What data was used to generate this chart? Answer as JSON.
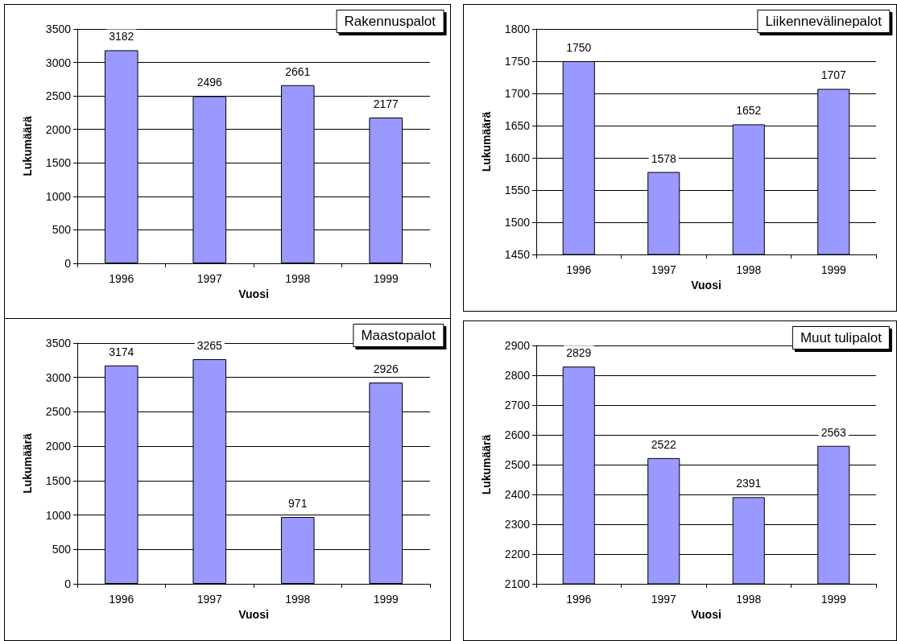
{
  "chart_data": [
    {
      "type": "bar",
      "title": "Rakennuspalot",
      "xlabel": "Vuosi",
      "ylabel": "Lukumäärä",
      "categories": [
        "1996",
        "1997",
        "1998",
        "1999"
      ],
      "values": [
        3182,
        2496,
        2661,
        2177
      ],
      "color": "#9999ff",
      "ylim": [
        0,
        3500
      ],
      "yticks": [
        0,
        500,
        1000,
        1500,
        2000,
        2500,
        3000,
        3500
      ],
      "grid": "y",
      "data_labels": true
    },
    {
      "type": "bar",
      "title": "Liikennevälinepalot",
      "xlabel": "Vuosi",
      "ylabel": "Lukumäärä",
      "categories": [
        "1996",
        "1997",
        "1998",
        "1999"
      ],
      "values": [
        1750,
        1578,
        1652,
        1707
      ],
      "color": "#9999ff",
      "ylim": [
        1450,
        1800
      ],
      "yticks": [
        1450,
        1500,
        1550,
        1600,
        1650,
        1700,
        1750,
        1800
      ],
      "grid": "y",
      "data_labels": true
    },
    {
      "type": "bar",
      "title": "Maastopalot",
      "xlabel": "Vuosi",
      "ylabel": "Lukumäärä",
      "categories": [
        "1996",
        "1997",
        "1998",
        "1999"
      ],
      "values": [
        3174,
        3265,
        971,
        2926
      ],
      "color": "#9999ff",
      "ylim": [
        0,
        3500
      ],
      "yticks": [
        0,
        500,
        1000,
        1500,
        2000,
        2500,
        3000,
        3500
      ],
      "grid": "y",
      "data_labels": true
    },
    {
      "type": "bar",
      "title": "Muut tulipalot",
      "xlabel": "Vuosi",
      "ylabel": "Lukumäärä",
      "categories": [
        "1996",
        "1997",
        "1998",
        "1999"
      ],
      "values": [
        2829,
        2522,
        2391,
        2563
      ],
      "color": "#9999ff",
      "ylim": [
        2100,
        2900
      ],
      "yticks": [
        2100,
        2200,
        2300,
        2400,
        2500,
        2600,
        2700,
        2800,
        2900
      ],
      "grid": "y",
      "data_labels": true
    }
  ]
}
